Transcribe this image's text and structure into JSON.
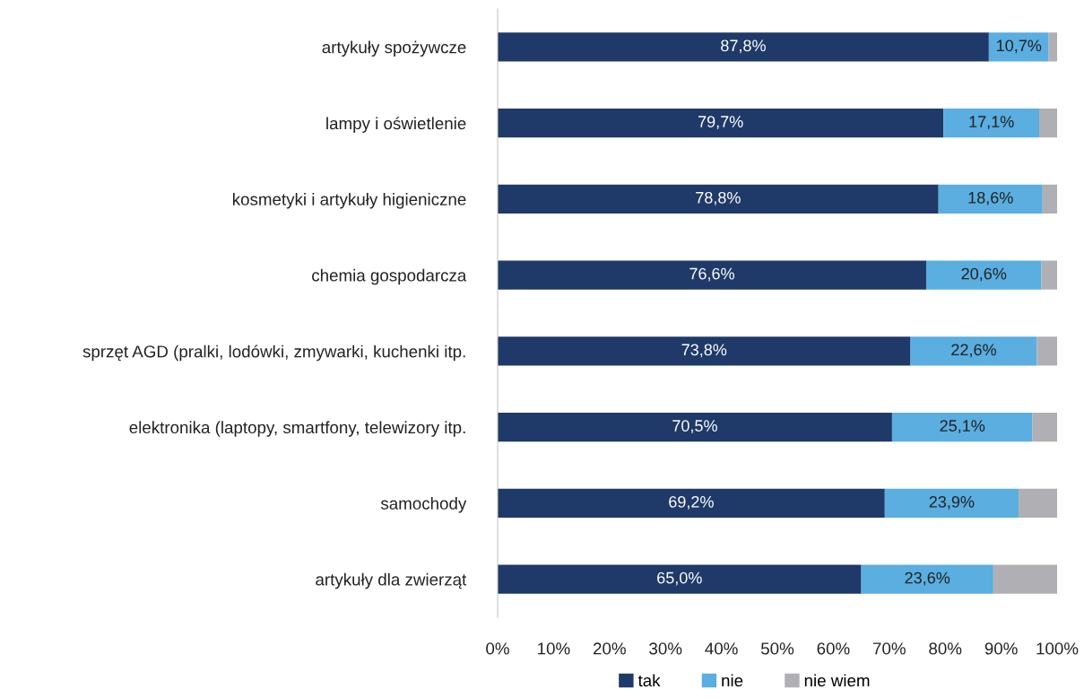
{
  "chart_data": {
    "type": "bar",
    "orientation": "horizontal",
    "stacked": true,
    "categories": [
      "artykuły spożywcze",
      "lampy i oświetlenie",
      "kosmetyki i artykuły higieniczne",
      "chemia gospodarcza",
      "sprzęt AGD (pralki, lodówki, zmywarki, kuchenki itp.",
      "elektronika (laptopy, smartfony, telewizory itp.",
      "samochody",
      "artykuły dla zwierząt"
    ],
    "series": [
      {
        "name": "tak",
        "color": "#1f3a68",
        "values": [
          87.8,
          79.7,
          78.8,
          76.6,
          73.8,
          70.5,
          69.2,
          65.0
        ],
        "value_labels": [
          "87,8%",
          "79,7%",
          "78,8%",
          "76,6%",
          "73,8%",
          "70,5%",
          "69,2%",
          "65,0%"
        ]
      },
      {
        "name": "nie",
        "color": "#5aaee0",
        "values": [
          10.7,
          17.1,
          18.6,
          20.6,
          22.6,
          25.1,
          23.9,
          23.6
        ],
        "value_labels": [
          "10,7%",
          "17,1%",
          "18,6%",
          "20,6%",
          "22,6%",
          "25,1%",
          "23,9%",
          "23,6%"
        ]
      },
      {
        "name": "nie wiem",
        "color": "#b0b0b4",
        "values": [
          1.5,
          3.2,
          2.6,
          2.8,
          3.6,
          4.4,
          6.9,
          11.4
        ]
      }
    ],
    "xlim": [
      0,
      100
    ],
    "xticks": [
      {
        "value": 0,
        "label": "0%"
      },
      {
        "value": 10,
        "label": "10%"
      },
      {
        "value": 20,
        "label": "20%"
      },
      {
        "value": 30,
        "label": "30%"
      },
      {
        "value": 40,
        "label": "40%"
      },
      {
        "value": 50,
        "label": "50%"
      },
      {
        "value": 60,
        "label": "60%"
      },
      {
        "value": 70,
        "label": "70%"
      },
      {
        "value": 80,
        "label": "80%"
      },
      {
        "value": 90,
        "label": "90%"
      },
      {
        "value": 100,
        "label": "100%"
      }
    ],
    "grid": false,
    "legend": "bottom"
  }
}
